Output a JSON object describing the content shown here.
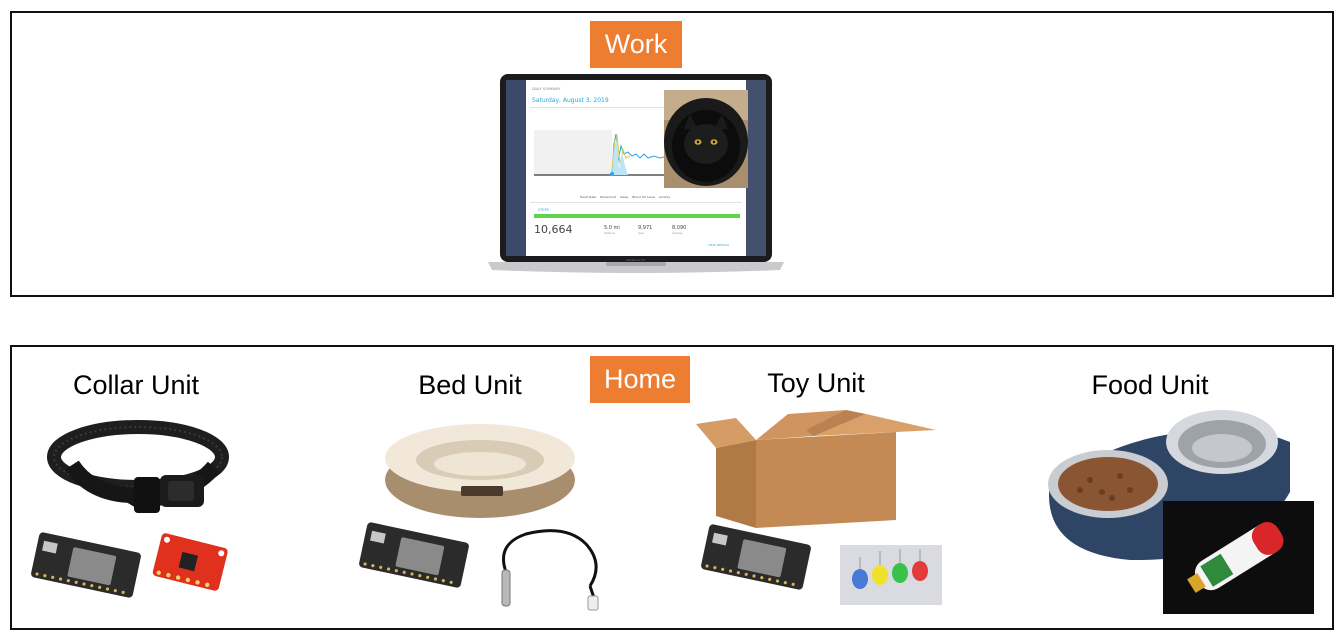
{
  "work": {
    "label": "Work",
    "dashboard": {
      "section_caption": "DAILY SUMMARY",
      "date": "Saturday, August 3, 2019",
      "legend": [
        "Heart Rate",
        "Movement",
        "Sleep",
        "Blood O2 Level",
        "Activity"
      ],
      "steps_header": "STEPS",
      "steps_value": "10,664",
      "distance_value": "5.0 mi",
      "distance_label": "Distance",
      "steps_goal_value": "9,971",
      "steps_goal_label": "Goal",
      "avg_value": "8,090",
      "avg_label": "Average",
      "view_details": "VIEW DETAILS",
      "laptop_model": "MacBook Pro"
    }
  },
  "home": {
    "label": "Home",
    "units": [
      {
        "title": "Collar Unit"
      },
      {
        "title": "Bed Unit"
      },
      {
        "title": "Toy Unit"
      },
      {
        "title": "Food Unit"
      }
    ]
  },
  "colors": {
    "accent": "#ed7d31",
    "border": "#111111",
    "progress_green": "#5fd34a",
    "dashboard_blue": "#2aa6e0"
  }
}
